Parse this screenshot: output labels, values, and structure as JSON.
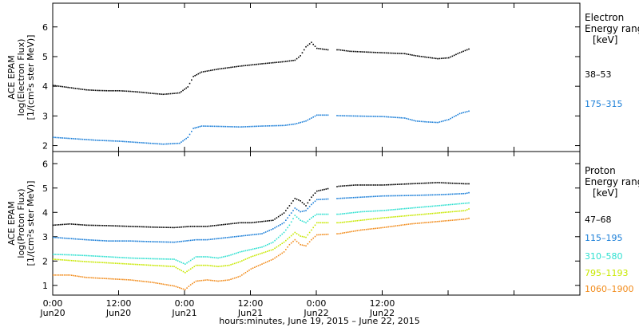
{
  "chart_data": [
    {
      "type": "scatter",
      "panel": "electron",
      "ylabel_lines": [
        "ACE EPAM",
        "log(Electron Flux)",
        "[1/(cm²s ster MeV)]"
      ],
      "ylim": [
        1.8,
        6.8
      ],
      "yticks": [
        2,
        3,
        4,
        5,
        6
      ],
      "legend_title": [
        "Electron",
        "Energy range",
        "[keV]"
      ],
      "series": [
        {
          "name": "38–53",
          "color": "#000000",
          "points": [
            [
              0,
              4.05
            ],
            [
              2,
              4.0
            ],
            [
              4,
              3.95
            ],
            [
              6,
              3.9
            ],
            [
              8,
              3.88
            ],
            [
              10,
              3.87
            ],
            [
              12,
              3.87
            ],
            [
              14,
              3.85
            ],
            [
              16,
              3.82
            ],
            [
              18,
              3.78
            ],
            [
              20,
              3.75
            ],
            [
              22,
              3.78
            ],
            [
              23,
              3.8
            ],
            [
              24.5,
              4.0
            ],
            [
              25.5,
              4.35
            ],
            [
              27,
              4.5
            ],
            [
              30,
              4.6
            ],
            [
              34,
              4.7
            ],
            [
              38,
              4.78
            ],
            [
              42,
              4.85
            ],
            [
              44,
              4.9
            ],
            [
              45,
              5.05
            ],
            [
              46,
              5.35
            ],
            [
              47,
              5.5
            ],
            [
              48,
              5.3
            ],
            [
              50,
              5.25
            ],
            [
              52,
              5.25
            ],
            [
              54,
              5.2
            ],
            [
              60,
              5.15
            ],
            [
              64,
              5.12
            ],
            [
              66,
              5.05
            ],
            [
              70,
              4.95
            ],
            [
              72,
              4.98
            ],
            [
              74,
              5.15
            ],
            [
              76,
              5.3
            ]
          ]
        },
        {
          "name": "175–315",
          "color": "#1a7ed8",
          "points": [
            [
              0,
              2.3
            ],
            [
              4,
              2.25
            ],
            [
              8,
              2.2
            ],
            [
              12,
              2.17
            ],
            [
              16,
              2.12
            ],
            [
              20,
              2.07
            ],
            [
              23,
              2.1
            ],
            [
              24.5,
              2.3
            ],
            [
              25.5,
              2.6
            ],
            [
              27,
              2.68
            ],
            [
              30,
              2.67
            ],
            [
              34,
              2.65
            ],
            [
              38,
              2.68
            ],
            [
              42,
              2.7
            ],
            [
              44,
              2.75
            ],
            [
              46,
              2.85
            ],
            [
              48,
              3.05
            ],
            [
              50,
              3.05
            ],
            [
              52,
              3.03
            ],
            [
              60,
              3.0
            ],
            [
              64,
              2.95
            ],
            [
              66,
              2.85
            ],
            [
              68,
              2.82
            ],
            [
              70,
              2.8
            ],
            [
              72,
              2.9
            ],
            [
              74,
              3.1
            ],
            [
              76,
              3.2
            ]
          ]
        }
      ]
    },
    {
      "type": "scatter",
      "panel": "proton",
      "ylabel_lines": [
        "ACE EPAM",
        "log(Proton Flux)",
        "[1/(cm²s ster MeV)]"
      ],
      "ylim": [
        0.6,
        6.5
      ],
      "yticks": [
        1,
        2,
        3,
        4,
        5,
        6
      ],
      "legend_title": [
        "Proton",
        "Energy range",
        "[keV]"
      ],
      "xlim": [
        0,
        96
      ],
      "xticks": [
        0,
        12,
        24,
        36,
        48,
        60,
        72,
        84,
        96
      ],
      "xtick_labels": [
        [
          "0:00",
          "Jun20"
        ],
        [
          "12:00",
          "Jun20"
        ],
        [
          "0:00",
          "Jun21"
        ],
        [
          "12:00",
          "Jun21"
        ],
        [
          "0:00",
          "Jun22"
        ],
        [
          "12:00",
          "Jun22"
        ]
      ],
      "xtick_label_positions": [
        0,
        12,
        24,
        36,
        48,
        60
      ],
      "xlabel": "hours:minutes, June 19, 2015 – June 22, 2015",
      "gap": [
        50,
        51.5
      ],
      "series": [
        {
          "name": "47–68",
          "color": "#000000",
          "points": [
            [
              0,
              3.5
            ],
            [
              3,
              3.55
            ],
            [
              6,
              3.5
            ],
            [
              10,
              3.48
            ],
            [
              14,
              3.45
            ],
            [
              18,
              3.42
            ],
            [
              22,
              3.4
            ],
            [
              25,
              3.45
            ],
            [
              28,
              3.45
            ],
            [
              30,
              3.5
            ],
            [
              32,
              3.55
            ],
            [
              34,
              3.6
            ],
            [
              36,
              3.6
            ],
            [
              38,
              3.65
            ],
            [
              40,
              3.7
            ],
            [
              42,
              4.0
            ],
            [
              43,
              4.3
            ],
            [
              44,
              4.6
            ],
            [
              45,
              4.5
            ],
            [
              46,
              4.3
            ],
            [
              47,
              4.65
            ],
            [
              48,
              4.9
            ],
            [
              50,
              5.0
            ],
            [
              52,
              5.1
            ],
            [
              55,
              5.15
            ],
            [
              60,
              5.15
            ],
            [
              65,
              5.2
            ],
            [
              70,
              5.25
            ],
            [
              75,
              5.2
            ],
            [
              76,
              5.2
            ]
          ]
        },
        {
          "name": "115–195",
          "color": "#1a7ed8",
          "points": [
            [
              0,
              3.0
            ],
            [
              3,
              2.95
            ],
            [
              6,
              2.9
            ],
            [
              10,
              2.85
            ],
            [
              14,
              2.85
            ],
            [
              18,
              2.82
            ],
            [
              22,
              2.8
            ],
            [
              24,
              2.85
            ],
            [
              26,
              2.9
            ],
            [
              28,
              2.9
            ],
            [
              30,
              2.95
            ],
            [
              32,
              3.0
            ],
            [
              34,
              3.05
            ],
            [
              36,
              3.1
            ],
            [
              38,
              3.15
            ],
            [
              40,
              3.35
            ],
            [
              42,
              3.6
            ],
            [
              43,
              3.9
            ],
            [
              44,
              4.2
            ],
            [
              45,
              4.05
            ],
            [
              46,
              4.1
            ],
            [
              47,
              4.35
            ],
            [
              48,
              4.55
            ],
            [
              52,
              4.6
            ],
            [
              56,
              4.65
            ],
            [
              60,
              4.7
            ],
            [
              65,
              4.72
            ],
            [
              70,
              4.75
            ],
            [
              75,
              4.8
            ],
            [
              76,
              4.85
            ]
          ]
        },
        {
          "name": "310–580",
          "color": "#2ee0d0",
          "points": [
            [
              0,
              2.3
            ],
            [
              3,
              2.28
            ],
            [
              6,
              2.25
            ],
            [
              10,
              2.2
            ],
            [
              14,
              2.15
            ],
            [
              18,
              2.12
            ],
            [
              22,
              2.1
            ],
            [
              24,
              1.9
            ],
            [
              26,
              2.2
            ],
            [
              28,
              2.2
            ],
            [
              30,
              2.15
            ],
            [
              32,
              2.25
            ],
            [
              34,
              2.4
            ],
            [
              36,
              2.5
            ],
            [
              38,
              2.6
            ],
            [
              40,
              2.8
            ],
            [
              42,
              3.2
            ],
            [
              43,
              3.5
            ],
            [
              44,
              3.9
            ],
            [
              45,
              3.7
            ],
            [
              46,
              3.6
            ],
            [
              47,
              3.8
            ],
            [
              48,
              3.95
            ],
            [
              52,
              3.95
            ],
            [
              56,
              4.05
            ],
            [
              60,
              4.1
            ],
            [
              65,
              4.2
            ],
            [
              70,
              4.3
            ],
            [
              75,
              4.4
            ],
            [
              76,
              4.42
            ]
          ]
        },
        {
          "name": "795–1193",
          "color": "#c8e800",
          "points": [
            [
              0,
              2.1
            ],
            [
              3,
              2.05
            ],
            [
              6,
              2.0
            ],
            [
              10,
              1.95
            ],
            [
              14,
              1.9
            ],
            [
              18,
              1.85
            ],
            [
              22,
              1.8
            ],
            [
              24,
              1.55
            ],
            [
              26,
              1.85
            ],
            [
              28,
              1.85
            ],
            [
              30,
              1.8
            ],
            [
              32,
              1.85
            ],
            [
              34,
              2.0
            ],
            [
              36,
              2.2
            ],
            [
              38,
              2.35
            ],
            [
              40,
              2.5
            ],
            [
              42,
              2.8
            ],
            [
              43,
              3.0
            ],
            [
              44,
              3.2
            ],
            [
              45,
              3.05
            ],
            [
              46,
              3.0
            ],
            [
              47,
              3.3
            ],
            [
              48,
              3.6
            ],
            [
              52,
              3.6
            ],
            [
              56,
              3.7
            ],
            [
              60,
              3.8
            ],
            [
              65,
              3.9
            ],
            [
              70,
              4.0
            ],
            [
              75,
              4.1
            ],
            [
              76,
              4.2
            ]
          ]
        },
        {
          "name": "1060–1900",
          "color": "#f28c1c",
          "points": [
            [
              0,
              1.45
            ],
            [
              3,
              1.45
            ],
            [
              6,
              1.35
            ],
            [
              10,
              1.3
            ],
            [
              14,
              1.25
            ],
            [
              18,
              1.15
            ],
            [
              22,
              1.0
            ],
            [
              24,
              0.85
            ],
            [
              25,
              1.05
            ],
            [
              26,
              1.2
            ],
            [
              28,
              1.25
            ],
            [
              30,
              1.2
            ],
            [
              32,
              1.25
            ],
            [
              34,
              1.4
            ],
            [
              36,
              1.7
            ],
            [
              38,
              1.9
            ],
            [
              40,
              2.1
            ],
            [
              42,
              2.4
            ],
            [
              43,
              2.7
            ],
            [
              44,
              2.9
            ],
            [
              45,
              2.7
            ],
            [
              46,
              2.65
            ],
            [
              47,
              2.9
            ],
            [
              48,
              3.1
            ],
            [
              52,
              3.15
            ],
            [
              56,
              3.3
            ],
            [
              60,
              3.4
            ],
            [
              65,
              3.55
            ],
            [
              70,
              3.65
            ],
            [
              75,
              3.75
            ],
            [
              76,
              3.8
            ]
          ]
        }
      ]
    }
  ]
}
